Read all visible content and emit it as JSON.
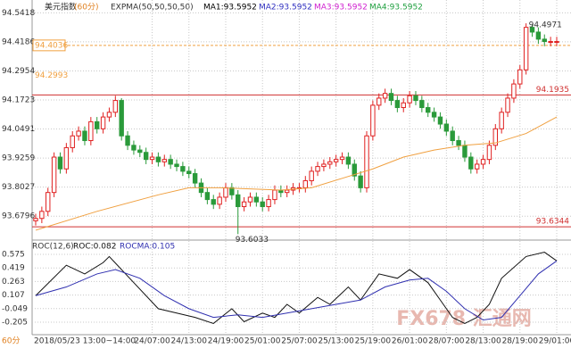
{
  "chart_data": [
    {
      "type": "candlestick",
      "title": "美元指数",
      "period": "(60分)",
      "indicator": "EXPMA(50,50,50,50)",
      "ma_labels": [
        "MA1:93.5952",
        "MA2:93.5952",
        "MA3:93.5952",
        "MA4:93.5952"
      ],
      "ma_colors": [
        "#000000",
        "#3030c0",
        "#d020d0",
        "#20a040"
      ],
      "categories": [
        null,
        null,
        null,
        null,
        null,
        null,
        null,
        null,
        null,
        null,
        null,
        null,
        null,
        null,
        null,
        null,
        null,
        null,
        null,
        "24/07:00",
        null,
        null,
        null,
        null,
        null,
        "24/13:00",
        null,
        null,
        null,
        null,
        null,
        "24/19:00",
        null,
        null,
        null,
        null,
        null,
        "25/01:00",
        null,
        null,
        null,
        null,
        null,
        "25/07:00",
        null,
        null,
        null,
        null,
        null,
        "25/13:00",
        null,
        null,
        null,
        null,
        null,
        "25/19:00",
        null,
        null,
        null,
        null,
        null,
        "26/01:00",
        null,
        null,
        null,
        null,
        null,
        "28/07:00",
        null,
        null,
        null,
        null,
        null,
        "28/13:00",
        null,
        null,
        null,
        null,
        null,
        "28/19:00",
        null,
        null,
        null,
        null,
        null,
        "29/01:00"
      ],
      "open": [
        93.66,
        93.67,
        93.7,
        93.78,
        93.93,
        93.88,
        93.97,
        94.02,
        94.04,
        94.0,
        94.08,
        94.05,
        94.1,
        94.12,
        94.17,
        94.02,
        93.98,
        93.96,
        93.95,
        93.92,
        93.93,
        93.91,
        93.92,
        93.9,
        93.89,
        93.87,
        93.86,
        93.82,
        93.78,
        93.75,
        93.73,
        93.76,
        93.8,
        93.77,
        93.72,
        93.74,
        93.76,
        93.74,
        93.72,
        93.75,
        93.79,
        93.78,
        93.79,
        93.8,
        93.8,
        93.83,
        93.87,
        93.89,
        93.9,
        93.91,
        93.92,
        93.93,
        93.9,
        93.85,
        93.8,
        94.02,
        94.15,
        94.18,
        94.2,
        94.17,
        94.14,
        94.16,
        94.19,
        94.17,
        94.14,
        94.12,
        94.1,
        94.07,
        94.04,
        94.0,
        93.98,
        93.93,
        93.88,
        93.9,
        93.92,
        93.98,
        94.05,
        94.12,
        94.18,
        94.24,
        94.3,
        94.48,
        94.46,
        94.43,
        94.42,
        94.42
      ],
      "high": [
        93.69,
        93.72,
        93.8,
        93.95,
        93.95,
        93.99,
        94.04,
        94.06,
        94.06,
        94.1,
        94.1,
        94.12,
        94.14,
        94.19,
        94.18,
        94.04,
        94.0,
        93.98,
        93.97,
        93.95,
        93.95,
        93.94,
        93.94,
        93.92,
        93.91,
        93.89,
        93.88,
        93.84,
        93.8,
        93.77,
        93.78,
        93.82,
        93.82,
        93.79,
        93.76,
        93.78,
        93.78,
        93.76,
        93.77,
        93.81,
        93.81,
        93.81,
        93.82,
        93.82,
        93.85,
        93.89,
        93.91,
        93.92,
        93.93,
        93.94,
        93.95,
        93.95,
        93.92,
        93.87,
        94.04,
        94.17,
        94.2,
        94.22,
        94.22,
        94.19,
        94.18,
        94.21,
        94.21,
        94.19,
        94.16,
        94.14,
        94.12,
        94.09,
        94.06,
        94.02,
        94.0,
        93.95,
        93.92,
        93.94,
        94.0,
        94.07,
        94.14,
        94.2,
        94.26,
        94.32,
        94.4971,
        94.49,
        94.48,
        94.45,
        94.44,
        94.44
      ],
      "low": [
        93.64,
        93.65,
        93.68,
        93.76,
        93.86,
        93.86,
        93.95,
        94.0,
        93.98,
        93.98,
        94.03,
        94.03,
        94.08,
        94.1,
        94.0,
        93.96,
        93.94,
        93.93,
        93.9,
        93.9,
        93.89,
        93.89,
        93.88,
        93.87,
        93.85,
        93.84,
        93.8,
        93.76,
        93.73,
        93.71,
        93.71,
        93.74,
        93.75,
        93.6033,
        93.7,
        93.72,
        93.72,
        93.7,
        93.7,
        93.73,
        93.76,
        93.76,
        93.77,
        93.78,
        93.78,
        93.81,
        93.85,
        93.87,
        93.88,
        93.89,
        93.9,
        93.88,
        93.83,
        93.78,
        93.78,
        94.0,
        94.13,
        94.16,
        94.15,
        94.12,
        94.12,
        94.14,
        94.15,
        94.12,
        94.1,
        94.08,
        94.05,
        94.02,
        93.98,
        93.96,
        93.91,
        93.86,
        93.86,
        93.88,
        93.9,
        93.96,
        94.03,
        94.1,
        94.16,
        94.22,
        94.28,
        94.44,
        94.41,
        94.4,
        94.4,
        94.4
      ],
      "close": [
        93.67,
        93.7,
        93.78,
        93.93,
        93.88,
        93.97,
        94.02,
        94.04,
        94.0,
        94.08,
        94.05,
        94.1,
        94.12,
        94.17,
        94.02,
        93.98,
        93.96,
        93.95,
        93.92,
        93.93,
        93.91,
        93.92,
        93.9,
        93.89,
        93.87,
        93.86,
        93.82,
        93.78,
        93.75,
        93.73,
        93.76,
        93.8,
        93.77,
        93.72,
        93.74,
        93.76,
        93.74,
        93.72,
        93.75,
        93.79,
        93.78,
        93.79,
        93.8,
        93.8,
        93.83,
        93.87,
        93.89,
        93.9,
        93.91,
        93.92,
        93.93,
        93.9,
        93.85,
        93.8,
        94.02,
        94.15,
        94.18,
        94.2,
        94.17,
        94.14,
        94.16,
        94.19,
        94.17,
        94.14,
        94.12,
        94.1,
        94.07,
        94.04,
        94.0,
        93.98,
        93.93,
        93.88,
        93.9,
        93.92,
        93.98,
        94.05,
        94.12,
        94.18,
        94.24,
        94.3,
        94.48,
        94.46,
        94.43,
        94.42,
        94.42,
        94.42
      ],
      "up_color": "#e02020",
      "down_color": "#2a9a3a",
      "series": [
        {
          "name": "EXPMA",
          "color": "#f0a040",
          "x": [
            0,
            10,
            20,
            25,
            30,
            40,
            45,
            50,
            55,
            60,
            65,
            70,
            75,
            80,
            85
          ],
          "values": [
            93.62,
            93.7,
            93.77,
            93.8,
            93.8,
            93.79,
            93.8,
            93.84,
            93.88,
            93.93,
            93.96,
            93.98,
            93.99,
            94.03,
            94.1
          ]
        }
      ],
      "max_index": 80,
      "min_index": 33,
      "levels": [
        {
          "value": 94.4036,
          "color": "#f0a040",
          "style": "dashed",
          "side": "left"
        },
        {
          "value": 94.2993,
          "color": "#f0a040",
          "style": "none",
          "side": "left"
        },
        {
          "value": 94.1935,
          "color": "#d03030",
          "style": "solid",
          "side": "right"
        },
        {
          "value": 93.6344,
          "color": "#d03030",
          "style": "solid",
          "side": "right"
        }
      ],
      "ylim": [
        93.582,
        94.596
      ],
      "yticks": [
        94.5418,
        94.4186,
        94.2954,
        94.1723,
        94.0491,
        93.9259,
        93.8027,
        93.6796
      ],
      "grid": true
    },
    {
      "type": "line",
      "title": "ROC(12,6)",
      "series": [
        {
          "name": "ROC:0.082",
          "color": "#111111",
          "x": [
            0,
            5,
            8,
            11,
            12,
            16,
            20,
            23,
            26,
            29,
            32,
            34,
            37,
            39,
            41,
            43,
            46,
            48,
            51,
            53,
            56,
            59,
            61,
            64,
            66,
            68,
            70,
            72,
            74,
            76,
            80,
            83,
            85
          ],
          "values": [
            0.1,
            0.45,
            0.35,
            0.48,
            0.55,
            0.25,
            -0.05,
            -0.1,
            -0.15,
            -0.22,
            -0.05,
            -0.2,
            -0.1,
            -0.15,
            0.0,
            -0.1,
            0.08,
            0.0,
            0.2,
            0.05,
            0.35,
            0.3,
            0.4,
            0.25,
            0.05,
            -0.15,
            -0.22,
            -0.15,
            0.0,
            0.3,
            0.55,
            0.6,
            0.5
          ]
        },
        {
          "name": "ROCMA:0.105",
          "color": "#3030b0",
          "x": [
            0,
            5,
            10,
            13,
            17,
            21,
            25,
            29,
            33,
            37,
            41,
            45,
            49,
            53,
            57,
            61,
            64,
            67,
            70,
            73,
            76,
            79,
            82,
            85
          ],
          "values": [
            0.1,
            0.2,
            0.35,
            0.4,
            0.3,
            0.1,
            -0.05,
            -0.15,
            -0.12,
            -0.15,
            -0.1,
            -0.05,
            0.0,
            0.05,
            0.2,
            0.28,
            0.3,
            0.15,
            -0.05,
            -0.18,
            -0.15,
            0.1,
            0.35,
            0.5
          ]
        }
      ],
      "ylim": [
        -0.349,
        0.729
      ],
      "yticks": [
        0.575,
        0.419,
        0.263,
        0.107,
        -0.049,
        -0.205
      ],
      "xlim": [
        0,
        85
      ],
      "grid": true,
      "cursor_time": "2018/05/23 13:00~14:00",
      "period_tag": "60分",
      "watermark": "FX678 汇通网"
    }
  ]
}
